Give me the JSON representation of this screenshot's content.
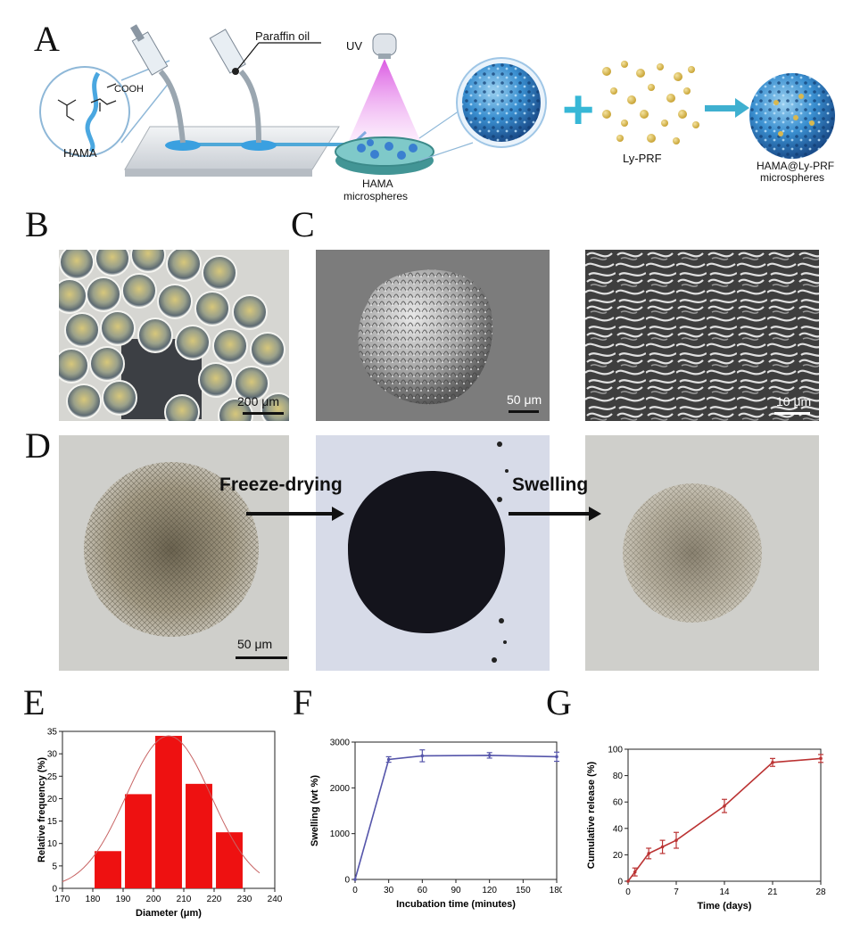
{
  "panels": {
    "A": "A",
    "B": "B",
    "C": "C",
    "D": "D",
    "E": "E",
    "F": "F",
    "G": "G"
  },
  "schematic": {
    "hama": "HAMA",
    "cooh": "COOH",
    "paraffin": "Paraffin oil",
    "uv": "UV",
    "microspheres_line1": "HAMA",
    "microspheres_line2": "microspheres",
    "lyprf": "Ly-PRF",
    "product_line1": "HAMA@Ly-PRF",
    "product_line2": "microspheres",
    "plus": "+"
  },
  "scalebars": {
    "b": "200 μm",
    "c1": "50 μm",
    "c2": "10 μm",
    "d": "50 μm"
  },
  "process": {
    "step1": "Freeze-drying",
    "step2": "Swelling"
  },
  "chart_data": [
    {
      "id": "E",
      "type": "bar",
      "xlabel": "Diameter (μm)",
      "ylabel": "Relative frequency (%)",
      "xlim": [
        170,
        240
      ],
      "ylim": [
        0,
        35
      ],
      "xticks": [
        170,
        180,
        190,
        200,
        210,
        220,
        230,
        240
      ],
      "yticks": [
        0,
        5,
        10,
        15,
        20,
        25,
        30,
        35
      ],
      "bin_width": 10,
      "x": [
        185,
        195,
        205,
        215,
        225
      ],
      "values": [
        8.3,
        21,
        34,
        23.3,
        12.5
      ],
      "fit_curve": "gaussian",
      "fit_mean": 205,
      "fit_peak": 34,
      "fit_sd": 14,
      "bar_color": "#ee1111",
      "curve_color": "#c86464"
    },
    {
      "id": "F",
      "type": "line",
      "xlabel": "Incubation time (minutes)",
      "ylabel": "Swelling (wt %)",
      "xlim": [
        0,
        180
      ],
      "ylim": [
        0,
        3000
      ],
      "xticks": [
        0,
        30,
        60,
        90,
        120,
        150,
        180
      ],
      "yticks": [
        0,
        1000,
        2000,
        3000
      ],
      "x": [
        0,
        30,
        60,
        120,
        180
      ],
      "values": [
        0,
        2620,
        2700,
        2710,
        2680
      ],
      "errors": [
        0,
        60,
        130,
        60,
        100
      ],
      "color": "#5555aa"
    },
    {
      "id": "G",
      "type": "line",
      "xlabel": "Time (days)",
      "ylabel": "Cumulative release (%)",
      "xlim": [
        0,
        28
      ],
      "ylim": [
        0,
        100
      ],
      "xticks": [
        0,
        7,
        14,
        21,
        28
      ],
      "yticks": [
        0,
        20,
        40,
        60,
        80,
        100
      ],
      "x": [
        0,
        1,
        3,
        5,
        7,
        14,
        21,
        28
      ],
      "values": [
        0,
        7,
        21,
        26,
        31,
        57,
        90,
        93
      ],
      "errors": [
        0,
        3,
        4,
        5,
        6,
        5,
        3,
        3
      ],
      "color": "#bb3333"
    }
  ]
}
